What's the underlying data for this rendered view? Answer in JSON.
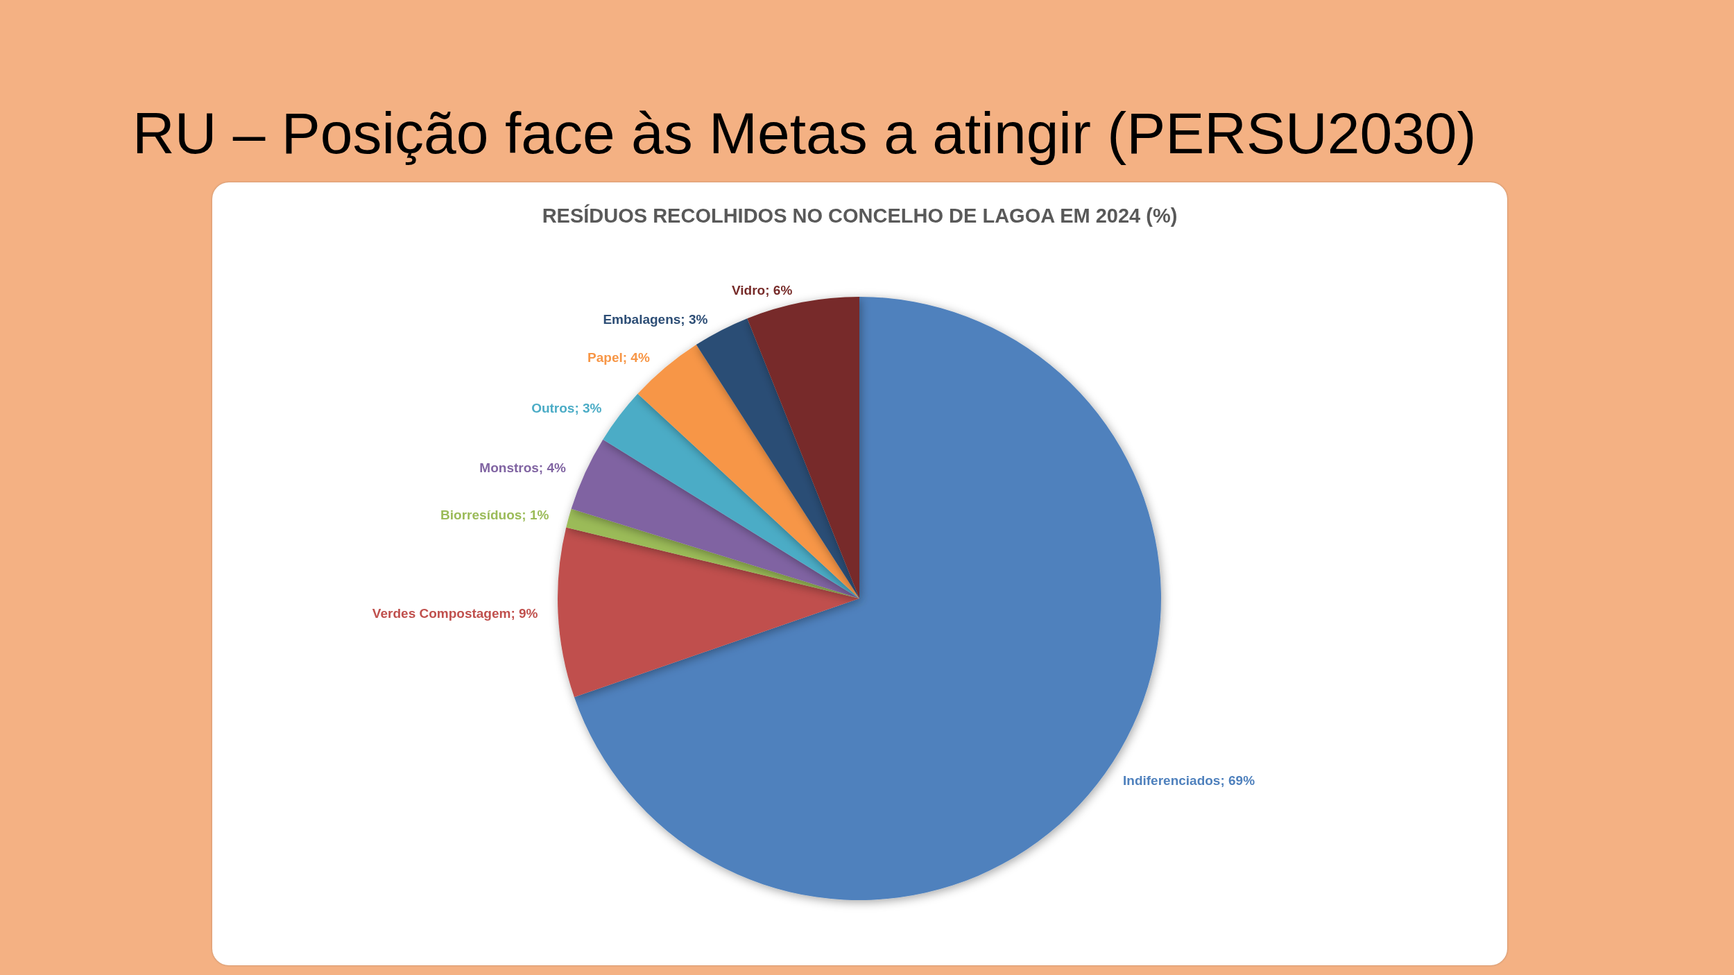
{
  "chart_data": {
    "type": "pie",
    "title": "RU – Posição face às Metas a atingir (PERSU2030)",
    "subtitle": "RESÍDUOS RECOLHIDOS NO CONCELHO DE LAGOA EM 2024 (%)",
    "categories": [
      "Indiferenciados",
      "Verdes Compostagem",
      "Biorresíduos",
      "Monstros",
      "Outros",
      "Papel",
      "Embalagens",
      "Vidro"
    ],
    "values": [
      69,
      9,
      1,
      4,
      3,
      4,
      3,
      6
    ],
    "colors": [
      "#4f81bd",
      "#c0504d",
      "#9bbb59",
      "#8064a2",
      "#4bacc6",
      "#f79646",
      "#2c4d75",
      "#772c2a"
    ],
    "value_labels": [
      "69%",
      "9%",
      "1%",
      "4%",
      "3%",
      "4%",
      "3%",
      "6%"
    ]
  }
}
